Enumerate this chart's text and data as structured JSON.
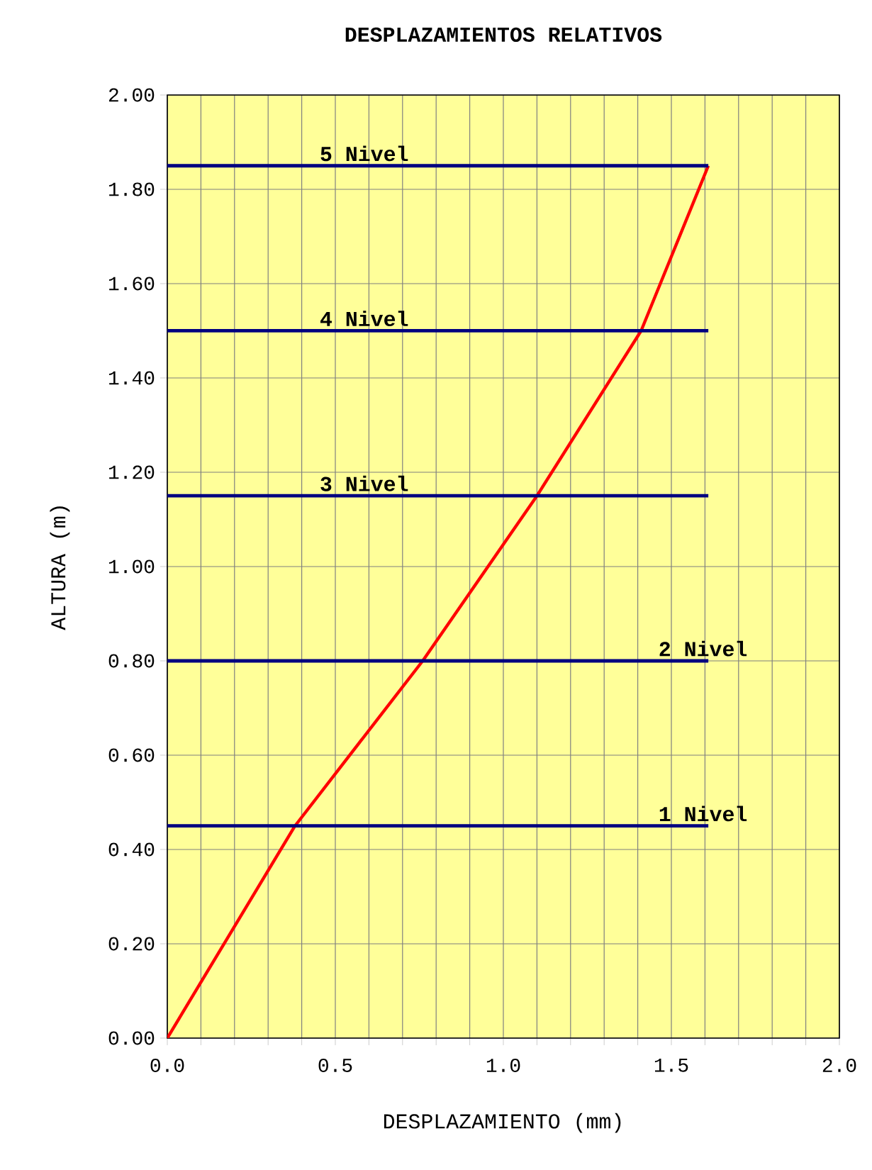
{
  "chart_data": {
    "type": "line",
    "title": "DESPLAZAMIENTOS RELATIVOS",
    "xlabel": "DESPLAZAMIENTO (mm)",
    "ylabel": "ALTURA (m)",
    "xlim": [
      0,
      2.0
    ],
    "ylim": [
      0,
      2.0
    ],
    "xticks": [
      {
        "value": 0,
        "label": "0.0"
      },
      {
        "value": 0.1,
        "label": null
      },
      {
        "value": 0.2,
        "label": null
      },
      {
        "value": 0.3,
        "label": null
      },
      {
        "value": 0.4,
        "label": null
      },
      {
        "value": 0.5,
        "label": "0.5"
      },
      {
        "value": 0.6,
        "label": null
      },
      {
        "value": 0.7,
        "label": null
      },
      {
        "value": 0.8,
        "label": null
      },
      {
        "value": 0.9,
        "label": null
      },
      {
        "value": 1.0,
        "label": "1.0"
      },
      {
        "value": 1.1,
        "label": null
      },
      {
        "value": 1.2,
        "label": null
      },
      {
        "value": 1.3,
        "label": null
      },
      {
        "value": 1.4,
        "label": null
      },
      {
        "value": 1.5,
        "label": "1.5"
      },
      {
        "value": 1.6,
        "label": null
      },
      {
        "value": 1.7,
        "label": null
      },
      {
        "value": 1.8,
        "label": null
      },
      {
        "value": 1.9,
        "label": null
      },
      {
        "value": 2.0,
        "label": "2.0"
      }
    ],
    "yticks": [
      {
        "value": 0,
        "label": "0.00"
      },
      {
        "value": 0.2,
        "label": "0.20"
      },
      {
        "value": 0.4,
        "label": "0.40"
      },
      {
        "value": 0.6,
        "label": "0.60"
      },
      {
        "value": 0.8,
        "label": "0.80"
      },
      {
        "value": 1.0,
        "label": "1.00"
      },
      {
        "value": 1.2,
        "label": "1.20"
      },
      {
        "value": 1.4,
        "label": "1.40"
      },
      {
        "value": 1.6,
        "label": "1.60"
      },
      {
        "value": 1.8,
        "label": "1.80"
      },
      {
        "value": 2.0,
        "label": "2.00"
      }
    ],
    "grid": true,
    "marker": "none",
    "line_style": "solid",
    "series": [
      {
        "color": "#ff0000",
        "x": [
          0,
          0.38,
          0.76,
          1.1,
          1.41,
          1.61
        ],
        "values": [
          0,
          0.45,
          0.8,
          1.15,
          1.5,
          1.85
        ]
      },
      {
        "name": "1 Nivel",
        "color": "#000080",
        "x": [
          0,
          1.61
        ],
        "values": [
          0.45,
          0.45
        ]
      },
      {
        "name": "2 Nivel",
        "color": "#000080",
        "x": [
          0,
          1.61
        ],
        "values": [
          0.8,
          0.8
        ]
      },
      {
        "name": "3 Nivel",
        "color": "#000080",
        "x": [
          0,
          1.61
        ],
        "values": [
          1.15,
          1.15
        ]
      },
      {
        "name": "4 Nivel",
        "color": "#000080",
        "x": [
          0,
          1.61
        ],
        "values": [
          1.5,
          1.5
        ]
      },
      {
        "name": "5 Nivel",
        "color": "#000080",
        "x": [
          0,
          1.61
        ],
        "values": [
          1.85,
          1.85
        ]
      }
    ]
  }
}
